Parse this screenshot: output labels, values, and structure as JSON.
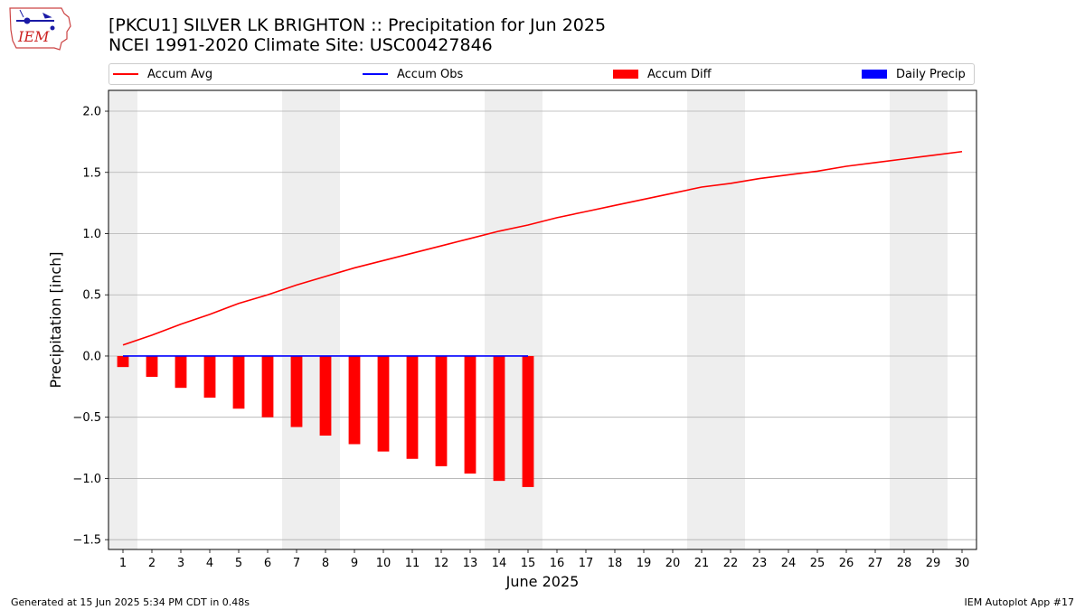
{
  "header": {
    "logo_text": "IEM",
    "title_line1": "[PKCU1] SILVER LK BRIGHTON :: Precipitation for Jun 2025",
    "title_line2": "NCEI 1991-2020 Climate Site: USC00427846"
  },
  "legend": {
    "items": [
      {
        "label": "Accum Avg",
        "kind": "line",
        "color": "#ff0000"
      },
      {
        "label": "Accum Obs",
        "kind": "line",
        "color": "#0000ff"
      },
      {
        "label": "Accum Diff",
        "kind": "box",
        "color": "#ff0000"
      },
      {
        "label": "Daily Precip",
        "kind": "box",
        "color": "#0000ff"
      }
    ]
  },
  "footer": {
    "left": "Generated at 15 Jun 2025 5:34 PM CDT in 0.48s",
    "right": "IEM Autoplot App #17"
  },
  "chart_data": {
    "type": "line",
    "title": "[PKCU1] SILVER LK BRIGHTON :: Precipitation for Jun 2025",
    "subtitle": "NCEI 1991-2020 Climate Site: USC00427846",
    "xlabel": "June 2025",
    "ylabel": "Precipitation [inch]",
    "x": [
      1,
      2,
      3,
      4,
      5,
      6,
      7,
      8,
      9,
      10,
      11,
      12,
      13,
      14,
      15,
      16,
      17,
      18,
      19,
      20,
      21,
      22,
      23,
      24,
      25,
      26,
      27,
      28,
      29,
      30
    ],
    "xlim": [
      0.5,
      30.5
    ],
    "ylim": [
      -1.58,
      2.17
    ],
    "yticks": [
      -1.5,
      -1.0,
      -0.5,
      0.0,
      0.5,
      1.0,
      1.5,
      2.0
    ],
    "ytick_labels": [
      "−1.5",
      "−1.0",
      "−0.5",
      "0.0",
      "0.5",
      "1.0",
      "1.5",
      "2.0"
    ],
    "grid": "horizontal",
    "legend_position": "top",
    "weekend_shading": [
      [
        0.5,
        1.5
      ],
      [
        6.5,
        8.5
      ],
      [
        13.5,
        15.5
      ],
      [
        20.5,
        22.5
      ],
      [
        27.5,
        29.5
      ]
    ],
    "series": [
      {
        "name": "Accum Avg",
        "kind": "line",
        "color": "#ff0000",
        "x": [
          1,
          2,
          3,
          4,
          5,
          6,
          7,
          8,
          9,
          10,
          11,
          12,
          13,
          14,
          15,
          16,
          17,
          18,
          19,
          20,
          21,
          22,
          23,
          24,
          25,
          26,
          27,
          28,
          29,
          30
        ],
        "values": [
          0.09,
          0.17,
          0.26,
          0.34,
          0.43,
          0.5,
          0.58,
          0.65,
          0.72,
          0.78,
          0.84,
          0.9,
          0.96,
          1.02,
          1.07,
          1.13,
          1.18,
          1.23,
          1.28,
          1.33,
          1.38,
          1.41,
          1.45,
          1.48,
          1.51,
          1.55,
          1.58,
          1.61,
          1.64,
          1.67
        ]
      },
      {
        "name": "Accum Obs",
        "kind": "line",
        "color": "#0000ff",
        "x": [
          1,
          2,
          3,
          4,
          5,
          6,
          7,
          8,
          9,
          10,
          11,
          12,
          13,
          14,
          15
        ],
        "values": [
          0,
          0,
          0,
          0,
          0,
          0,
          0,
          0,
          0,
          0,
          0,
          0,
          0,
          0,
          0
        ]
      },
      {
        "name": "Accum Diff",
        "kind": "bar",
        "color": "#ff0000",
        "x": [
          1,
          2,
          3,
          4,
          5,
          6,
          7,
          8,
          9,
          10,
          11,
          12,
          13,
          14,
          15
        ],
        "values": [
          -0.09,
          -0.17,
          -0.26,
          -0.34,
          -0.43,
          -0.5,
          -0.58,
          -0.65,
          -0.72,
          -0.78,
          -0.84,
          -0.9,
          -0.96,
          -1.02,
          -1.07
        ]
      },
      {
        "name": "Daily Precip",
        "kind": "bar",
        "color": "#0000ff",
        "x": [
          1,
          2,
          3,
          4,
          5,
          6,
          7,
          8,
          9,
          10,
          11,
          12,
          13,
          14,
          15
        ],
        "values": [
          0,
          0,
          0,
          0,
          0,
          0,
          0,
          0,
          0,
          0,
          0,
          0,
          0,
          0,
          0
        ]
      }
    ]
  }
}
